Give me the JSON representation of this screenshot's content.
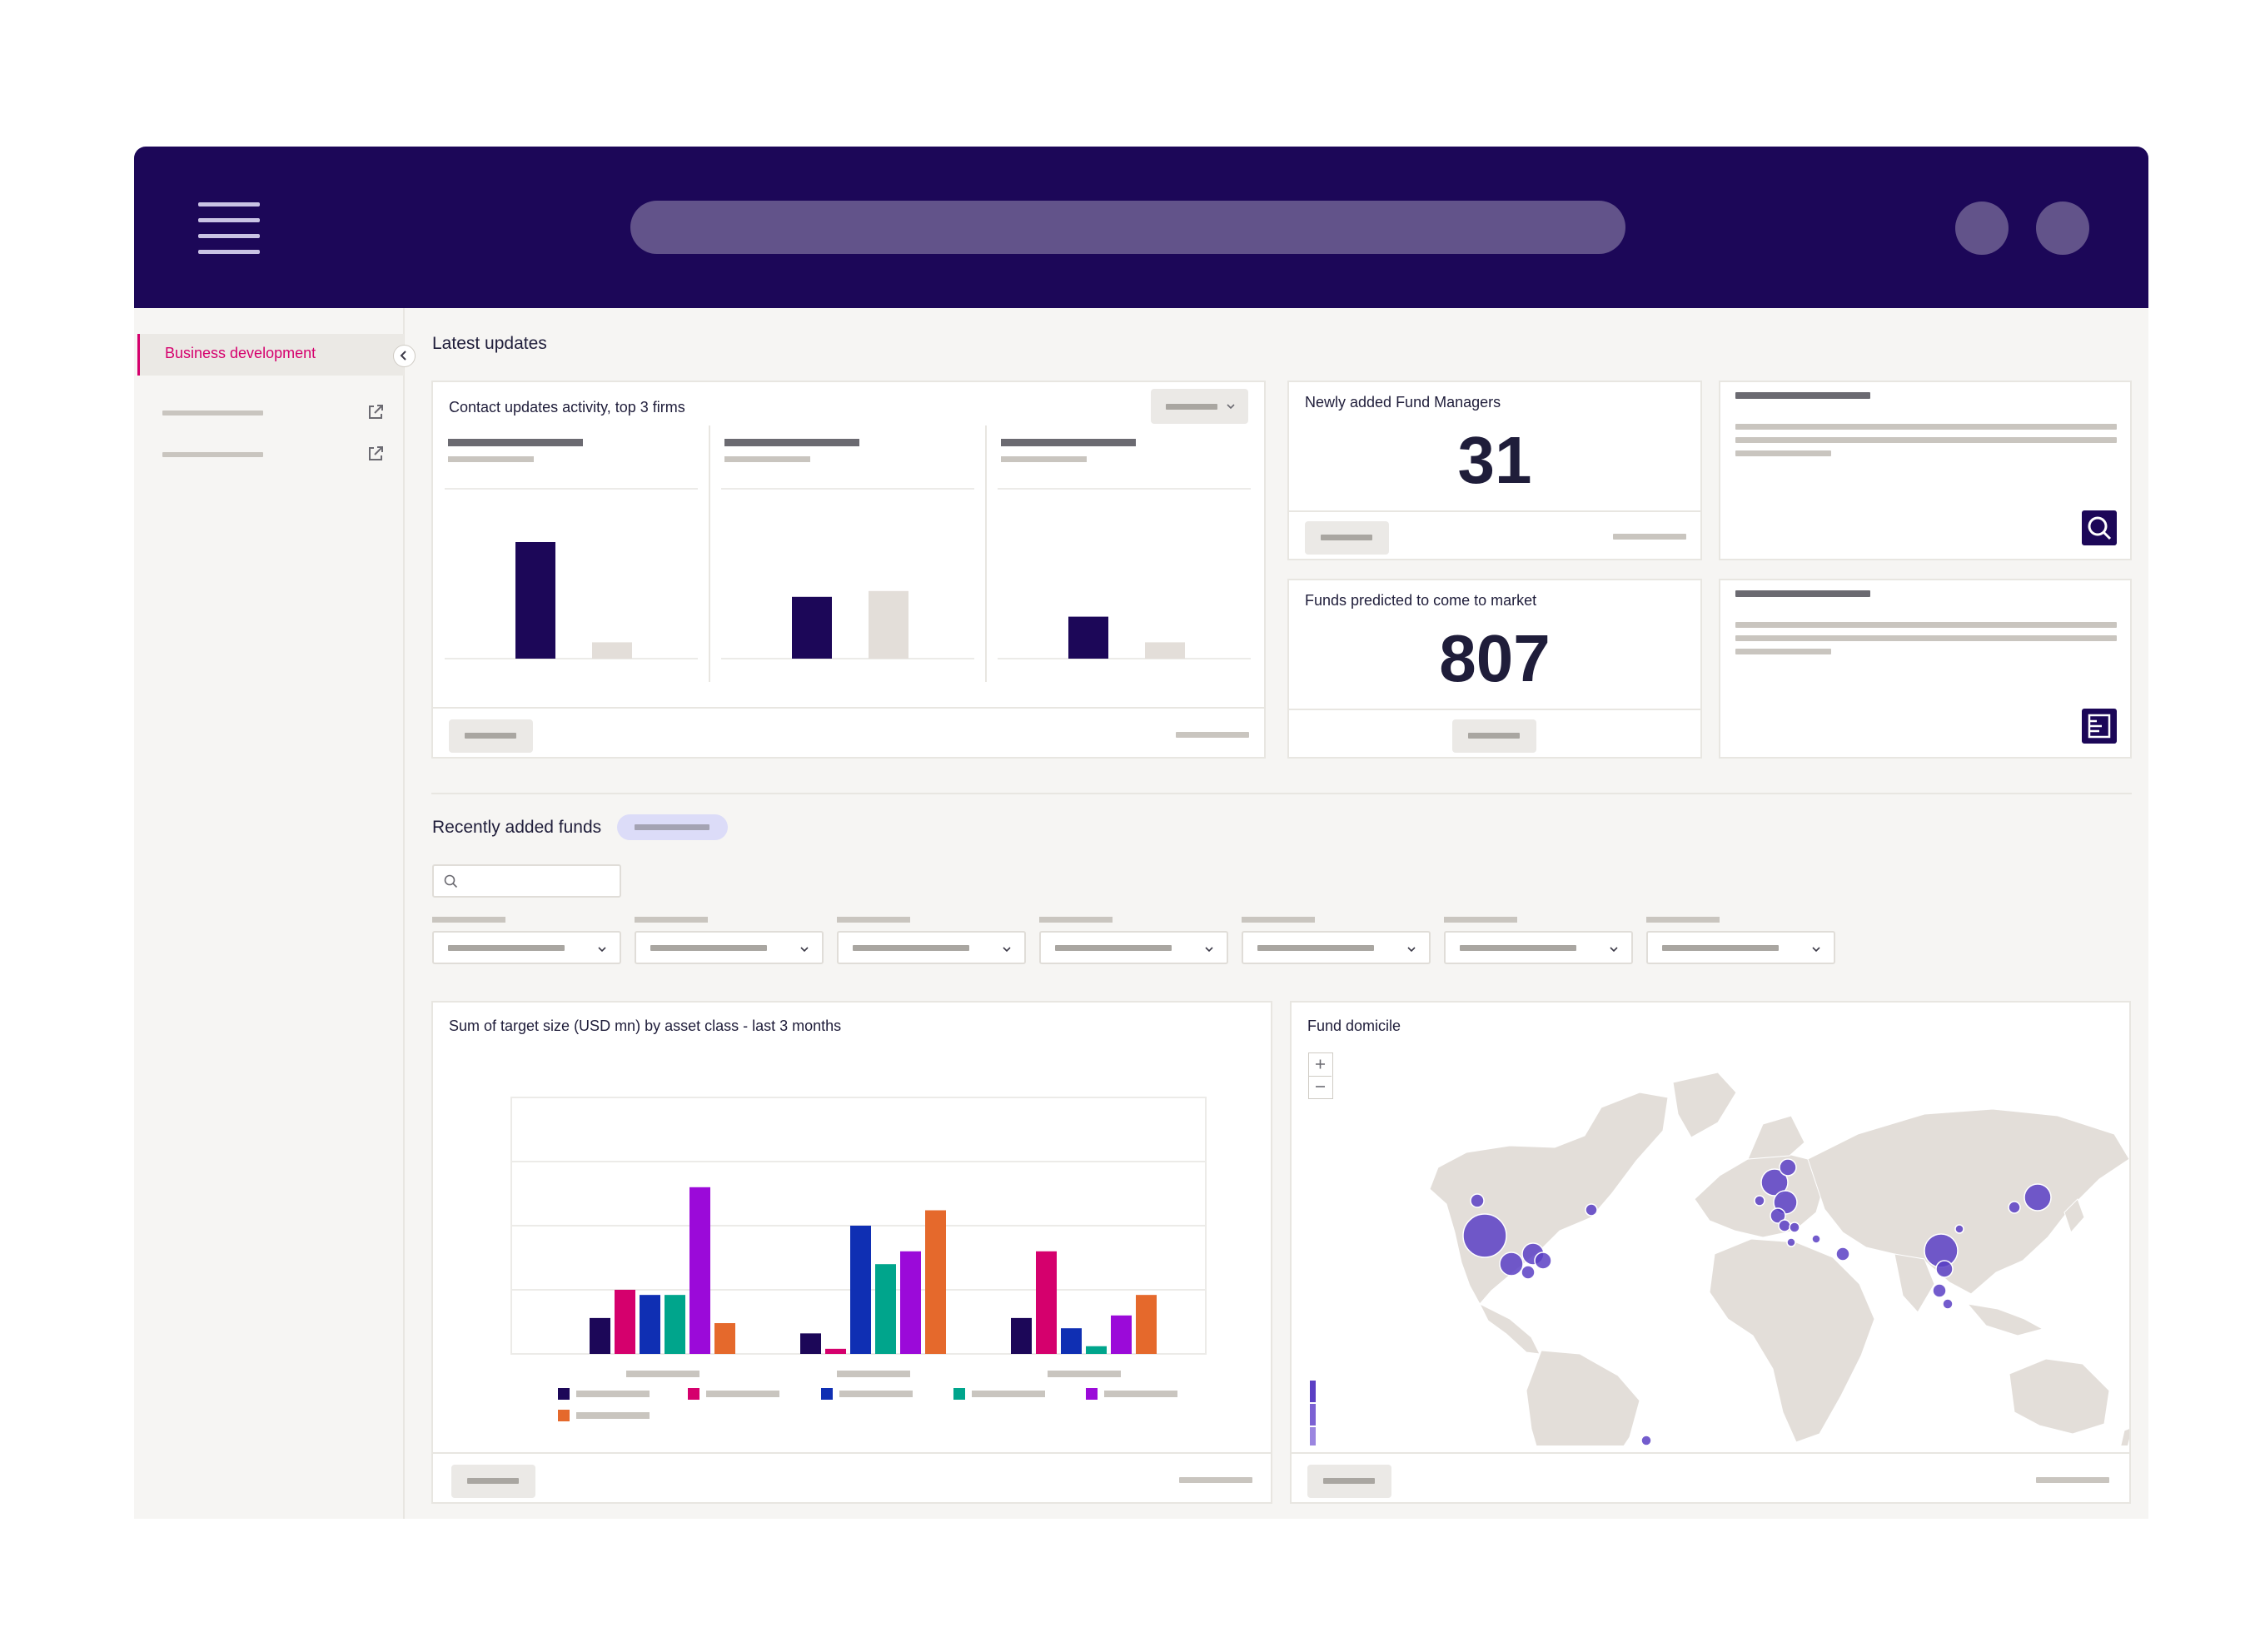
{
  "sidebar": {
    "active_item": "Business development"
  },
  "latest_updates": {
    "title": "Latest updates",
    "contact_card": {
      "title": "Contact updates activity, top 3 firms",
      "firms": [
        {
          "values": [
            100,
            14
          ],
          "colors": [
            "#1c0758",
            "#e3ded9"
          ]
        },
        {
          "values": [
            53,
            58
          ],
          "colors": [
            "#1c0758",
            "#e3ded9"
          ]
        },
        {
          "values": [
            36,
            14
          ],
          "colors": [
            "#1c0758",
            "#e3ded9"
          ]
        }
      ]
    },
    "fund_managers": {
      "title": "Newly added Fund Managers",
      "value": "31"
    },
    "funds_to_market": {
      "title": "Funds predicted to come to market",
      "value": "807"
    },
    "icons": {
      "card_a": "search-icon",
      "card_b": "report-icon"
    }
  },
  "recent_funds": {
    "title": "Recently added funds",
    "filter_count": 7
  },
  "chart_data": [
    {
      "type": "bar",
      "title": "Sum of target size (USD mn) by asset class - last 3 months",
      "groups": 3,
      "colors": [
        "#1c0758",
        "#d5006d",
        "#0f2fb3",
        "#00a58c",
        "#9b0ad9",
        "#e5692c"
      ],
      "series": [
        {
          "values": [
            14,
            8,
            14
          ]
        },
        {
          "values": [
            25,
            2,
            40
          ]
        },
        {
          "values": [
            23,
            50,
            10
          ]
        },
        {
          "values": [
            23,
            35,
            3
          ]
        },
        {
          "values": [
            65,
            40,
            15
          ]
        },
        {
          "values": [
            12,
            56,
            23
          ]
        }
      ],
      "ylim": [
        0,
        100
      ],
      "grid": true,
      "legend": "bottom"
    },
    {
      "type": "scatter",
      "title": "Fund domicile",
      "kind": "bubble-map",
      "bubble_color": "#5b3fc4"
    }
  ]
}
